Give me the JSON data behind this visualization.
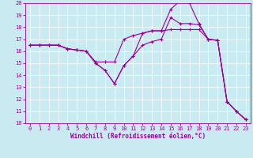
{
  "xlabel": "Windchill (Refroidissement éolien,°C)",
  "xlim": [
    -0.5,
    23.5
  ],
  "ylim": [
    10,
    20
  ],
  "yticks": [
    10,
    11,
    12,
    13,
    14,
    15,
    16,
    17,
    18,
    19,
    20
  ],
  "xticks": [
    0,
    1,
    2,
    3,
    4,
    5,
    6,
    7,
    8,
    9,
    10,
    11,
    12,
    13,
    14,
    15,
    16,
    17,
    18,
    19,
    20,
    21,
    22,
    23
  ],
  "bg_color": "#c8eaf0",
  "line_color": "#990099",
  "lines": [
    {
      "x": [
        0,
        1,
        2,
        3,
        4,
        5,
        6,
        7,
        8,
        9,
        10,
        11,
        12,
        13,
        14,
        15,
        16,
        17,
        18,
        19,
        20,
        21,
        22,
        23
      ],
      "y": [
        16.5,
        16.5,
        16.5,
        16.5,
        16.2,
        16.1,
        16.0,
        15.0,
        14.4,
        13.3,
        14.8,
        15.6,
        17.5,
        17.7,
        17.7,
        19.5,
        20.2,
        20.0,
        18.3,
        17.0,
        16.9,
        11.8,
        11.0,
        10.3
      ]
    },
    {
      "x": [
        0,
        1,
        2,
        3,
        4,
        5,
        6,
        7,
        8,
        9,
        10,
        11,
        12,
        13,
        14,
        15,
        16,
        17,
        18,
        19,
        20,
        21,
        22,
        23
      ],
      "y": [
        16.5,
        16.5,
        16.5,
        16.5,
        16.2,
        16.1,
        16.0,
        15.0,
        14.4,
        13.3,
        14.8,
        15.6,
        16.5,
        16.8,
        17.0,
        18.8,
        18.3,
        18.3,
        18.2,
        17.0,
        16.9,
        11.8,
        11.0,
        10.3
      ]
    },
    {
      "x": [
        0,
        1,
        2,
        3,
        4,
        5,
        6,
        7,
        8,
        9,
        10,
        11,
        12,
        13,
        14,
        15,
        16,
        17,
        18,
        19,
        20,
        21,
        22,
        23
      ],
      "y": [
        16.5,
        16.5,
        16.5,
        16.5,
        16.2,
        16.1,
        16.0,
        15.1,
        15.1,
        15.1,
        17.0,
        17.3,
        17.5,
        17.7,
        17.7,
        17.8,
        17.8,
        17.8,
        17.8,
        17.0,
        16.9,
        11.8,
        11.0,
        10.3
      ]
    }
  ],
  "xlabel_fontsize": 5.5,
  "tick_fontsize": 5.0,
  "linewidth": 0.8,
  "markersize": 3.5
}
